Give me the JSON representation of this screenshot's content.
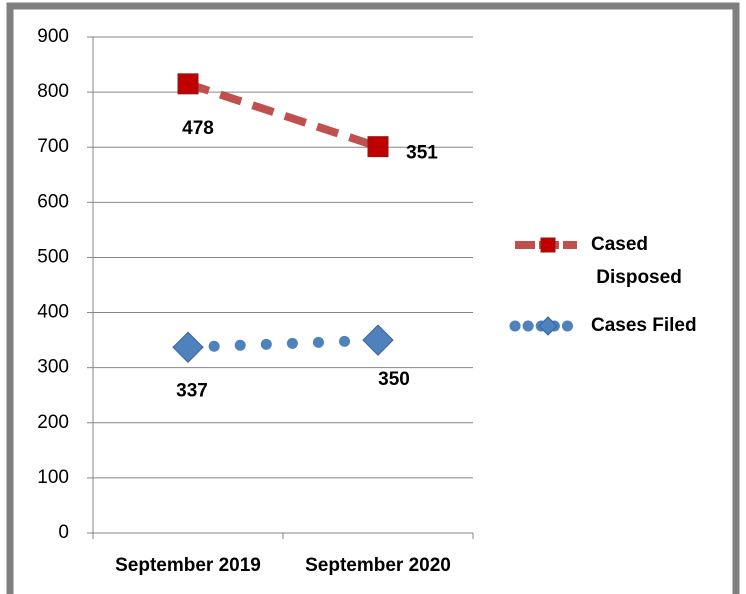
{
  "chart_data": {
    "type": "line",
    "stacked": true,
    "categories": [
      "September 2019",
      "September 2020"
    ],
    "series": [
      {
        "name": "Cases Filed",
        "color": "#4f81bd",
        "marker_color": "#4f81bd",
        "values": [
          337,
          350
        ]
      },
      {
        "name": "Cased Disposed",
        "color": "#c0504d",
        "marker_color": "#c00000",
        "values": [
          478,
          351
        ]
      }
    ],
    "ylim": [
      0,
      900
    ],
    "yticks": [
      0,
      100,
      200,
      300,
      400,
      500,
      600,
      700,
      800,
      900
    ],
    "grid": true,
    "legend": "right"
  }
}
